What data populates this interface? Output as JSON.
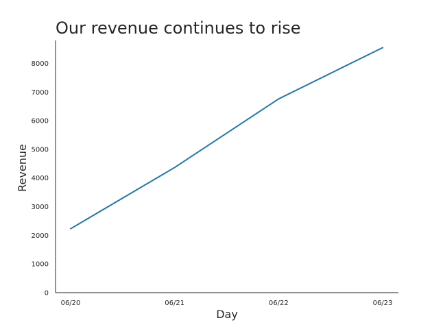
{
  "chart_data": {
    "type": "line",
    "title": "Our revenue continues to rise",
    "xlabel": "Day",
    "ylabel": "Revenue",
    "categories": [
      "06/20",
      "06/21",
      "06/22",
      "06/23"
    ],
    "series": [
      {
        "values": [
          2230,
          4370,
          6760,
          8550
        ],
        "color": "#1f77b4"
      }
    ],
    "yticks": [
      0,
      1000,
      2000,
      3000,
      4000,
      5000,
      6000,
      7000,
      8000
    ],
    "ylim": [
      0,
      8800
    ],
    "grid": false,
    "spines": [
      "left",
      "bottom"
    ]
  }
}
